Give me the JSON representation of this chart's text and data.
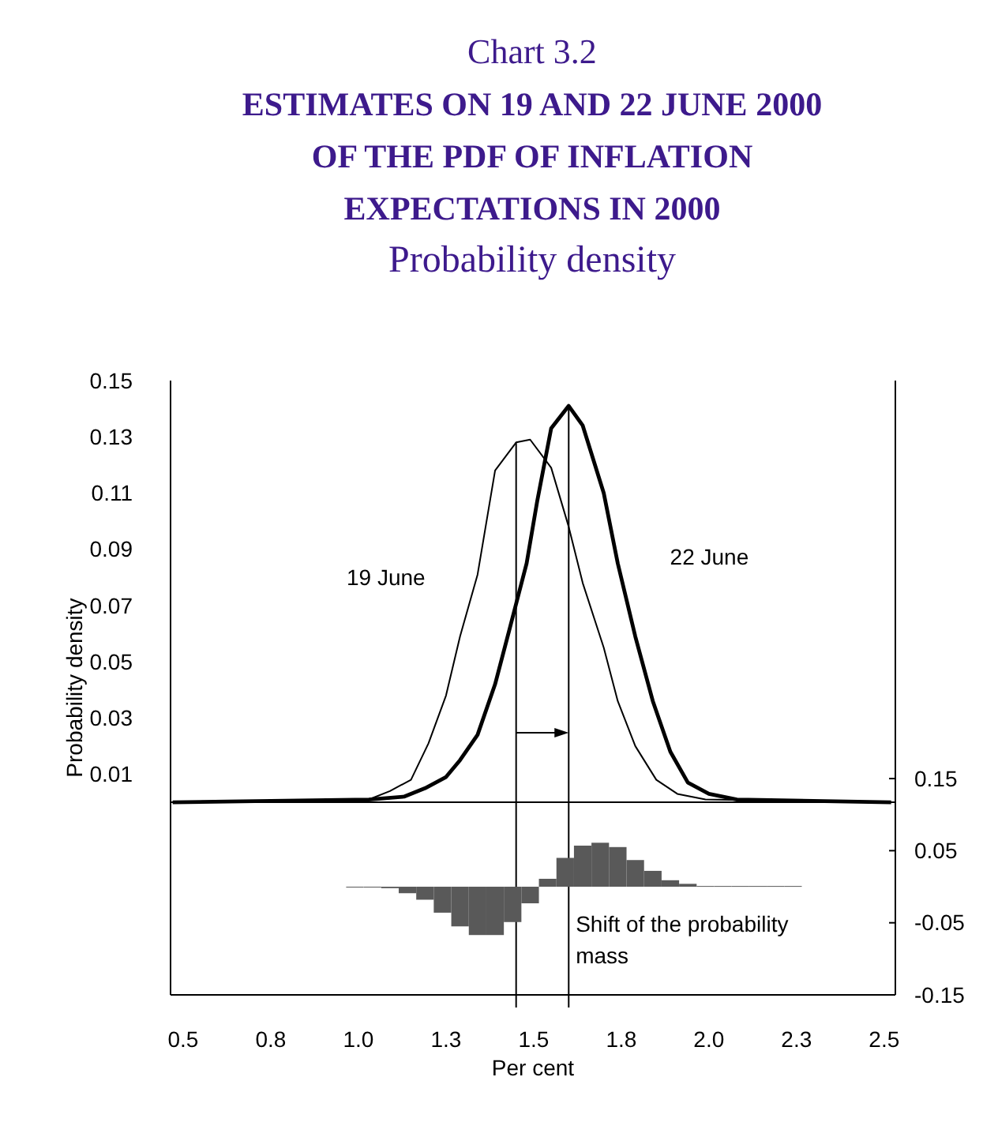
{
  "chart_data": {
    "type": "line",
    "title": "Chart 3.2",
    "subtitle": "ESTIMATES ON 19 AND 22 JUNE 2000 OF THE PDF OF INFLATION EXPECTATIONS IN 2000",
    "annotations": [
      "Probability density",
      {
        "text": "Shift of the probability mass",
        "x": 1.62,
        "y": -0.046
      }
    ],
    "xlabel": "Per cent",
    "ylabel": "Probability density",
    "xlim": [
      0.464,
      2.532
    ],
    "xticks": [
      0.5,
      {
        "value": 0.75,
        "label": "0.8"
      },
      {
        "value": 1,
        "label": "1.0"
      },
      {
        "value": 1.25,
        "label": "1.3"
      },
      1.5,
      {
        "value": 1.75,
        "label": "1.8"
      },
      {
        "value": 2,
        "label": "2.0"
      },
      {
        "value": 2.25,
        "label": "2.3"
      },
      2.5
    ],
    "ylim": [
      -0.0685,
      0.15
    ],
    "yticks": [
      0.01,
      0.03,
      0.05,
      0.07,
      0.09,
      0.11,
      0.13,
      0.15
    ],
    "y2lim": [
      -0.15,
      0.702
    ],
    "y2ticks": [
      -0.15,
      -0.05,
      0.05,
      0.15
    ],
    "grid": false,
    "legend": false,
    "ref_lines": [
      {
        "axis": "x",
        "value": 1.45
      },
      {
        "axis": "x",
        "value": 1.6
      }
    ],
    "series": [
      {
        "name": "19 June",
        "color": "#000000",
        "x": [
          0.47,
          1.03,
          1.09,
          1.15,
          1.2,
          1.25,
          1.29,
          1.34,
          1.39,
          1.45,
          1.49,
          1.55,
          1.6,
          1.64,
          1.7,
          1.74,
          1.79,
          1.85,
          1.91,
          1.99,
          2.52
        ],
        "values": [
          0,
          0.001,
          0.004,
          0.008,
          0.021,
          0.038,
          0.059,
          0.081,
          0.118,
          0.128,
          0.129,
          0.119,
          0.098,
          0.078,
          0.055,
          0.036,
          0.02,
          0.008,
          0.003,
          0.001,
          0
        ]
      },
      {
        "name": "22 June",
        "color": "#000000",
        "x": [
          0.47,
          1.03,
          1.13,
          1.19,
          1.25,
          1.29,
          1.34,
          1.39,
          1.43,
          1.48,
          1.51,
          1.55,
          1.6,
          1.64,
          1.7,
          1.74,
          1.79,
          1.84,
          1.89,
          1.94,
          2.0,
          2.08,
          2.52
        ],
        "values": [
          0,
          0.001,
          0.002,
          0.005,
          0.009,
          0.015,
          0.024,
          0.042,
          0.061,
          0.085,
          0.107,
          0.133,
          0.141,
          0.134,
          0.11,
          0.085,
          0.059,
          0.036,
          0.018,
          0.007,
          0.003,
          0.001,
          0
        ]
      },
      {
        "type": "bar",
        "axis": "y2",
        "color": "#595959",
        "x": [
          0.99,
          1.04,
          1.09,
          1.14,
          1.19,
          1.24,
          1.29,
          1.34,
          1.39,
          1.44,
          1.49,
          1.54,
          1.59,
          1.64,
          1.69,
          1.74,
          1.79,
          1.84,
          1.89,
          1.94,
          1.99,
          2.04,
          2.09,
          2.14,
          2.19,
          2.24
        ],
        "values": [
          -0.001,
          -0.001,
          -0.002,
          -0.009,
          -0.018,
          -0.036,
          -0.055,
          -0.067,
          -0.067,
          -0.049,
          -0.023,
          0.011,
          0.04,
          0.057,
          0.061,
          0.055,
          0.037,
          0.022,
          0.009,
          0.004,
          0.001,
          0.001,
          0.001,
          0.001,
          0.001,
          0.001
        ]
      }
    ]
  }
}
